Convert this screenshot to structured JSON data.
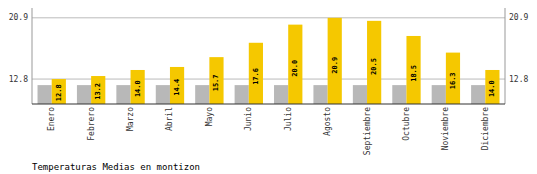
{
  "chart_data": {
    "type": "bar",
    "title": "Temperaturas Medias en montizon",
    "categories": [
      "Enero",
      "Febrero",
      "Marzo",
      "Abril",
      "Mayo",
      "Junio",
      "Julio",
      "Agosto",
      "Septiembre",
      "Octubre",
      "Noviembre",
      "Diciembre"
    ],
    "series": [
      {
        "color": "#B8B8B8",
        "values": [
          12.0,
          12.0,
          12.0,
          12.0,
          12.0,
          12.0,
          12.0,
          12.0,
          12.0,
          12.0,
          12.0,
          12.0
        ]
      },
      {
        "color": "#F5C800",
        "values": [
          12.8,
          13.2,
          14.0,
          14.4,
          15.7,
          17.6,
          20.0,
          20.9,
          20.5,
          18.5,
          16.3,
          14.0
        ],
        "value_labels": [
          "12.8",
          "13.2",
          "14.0",
          "14.4",
          "15.7",
          "17.6",
          "20.0",
          "20.9",
          "20.5",
          "18.5",
          "16.3",
          "14.0"
        ],
        "data_labels": true
      }
    ],
    "ylim": [
      9.5,
      22.2
    ],
    "yticks": [
      12.8,
      20.9
    ],
    "y2lim": [
      9.5,
      22.2
    ],
    "y2ticks": [
      12.8,
      20.9
    ],
    "grid": true
  }
}
